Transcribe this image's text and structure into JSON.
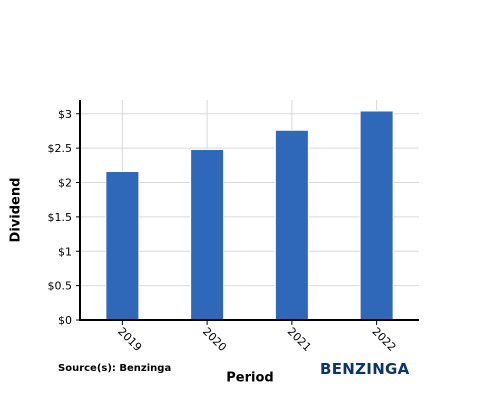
{
  "chart_data": {
    "type": "bar",
    "categories": [
      "2019",
      "2020",
      "2021",
      "2022"
    ],
    "values": [
      2.16,
      2.48,
      2.76,
      3.04
    ],
    "title": "",
    "xlabel": "Period",
    "ylabel": "Dividend",
    "ylim": [
      0,
      3.2
    ],
    "yticks": [
      0,
      0.5,
      1,
      1.5,
      2,
      2.5,
      3
    ],
    "ytick_labels": [
      "$0",
      "$0.5",
      "$1",
      "$1.5",
      "$2",
      "$2.5",
      "$3"
    ],
    "grid": true,
    "legend": "none"
  },
  "footer": {
    "source": "Source(s): Benzinga",
    "brand": "BENZINGA"
  },
  "colors": {
    "bar": "#2f67b9",
    "grid": "#d9d9d9",
    "axis": "#000000",
    "brand": "#0a3566"
  }
}
